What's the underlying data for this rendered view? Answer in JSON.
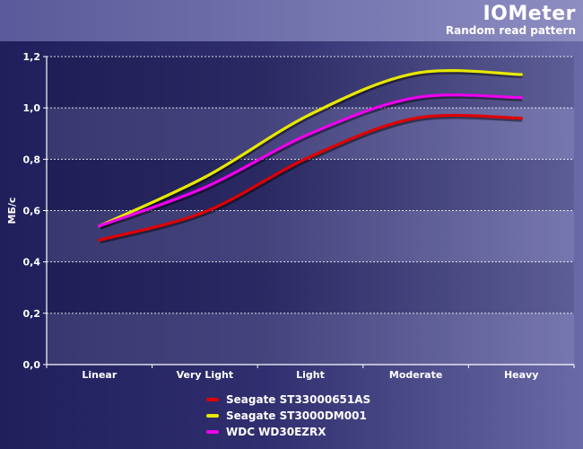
{
  "chart_data": {
    "type": "line",
    "title": "IOMeter",
    "subtitle": "Random read pattern",
    "ylabel": "МБ/с",
    "xlabel": "",
    "categories": [
      "Linear",
      "Very Light",
      "Light",
      "Moderate",
      "Heavy"
    ],
    "ylim": [
      0,
      1.2
    ],
    "yticks": [
      "0,0",
      "0,2",
      "0,4",
      "0,6",
      "0,8",
      "1,0",
      "1,2"
    ],
    "grid": true,
    "legend_position": "bottom",
    "series": [
      {
        "name": "Seagate ST33000651AS",
        "color": "#e00000",
        "values": [
          0.485,
          0.595,
          0.81,
          0.96,
          0.96
        ]
      },
      {
        "name": "Seagate ST3000DM001",
        "color": "#e8e800",
        "values": [
          0.54,
          0.73,
          0.975,
          1.135,
          1.13
        ]
      },
      {
        "name": "WDC WD30EZRX",
        "color": "#ee00ee",
        "values": [
          0.54,
          0.69,
          0.9,
          1.04,
          1.04
        ]
      }
    ]
  }
}
